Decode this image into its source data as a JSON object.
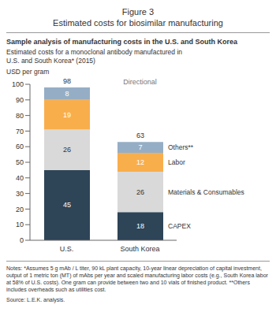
{
  "chart_data": {
    "type": "bar",
    "header": "Figure 3",
    "title": "Estimated costs for biosimilar manufacturing",
    "subtitle": "Sample analysis of manufacturing costs in the U.S. and South Korea",
    "description": "Estimated costs for a monoclonal antibody manufactured in U.S. and South Korea* (2015)",
    "y_label": "USD per gram",
    "annotation": "Directional",
    "categories": [
      "U.S.",
      "South Korea"
    ],
    "series": [
      {
        "name": "CAPEX",
        "color": "#2e4457",
        "values": [
          45,
          18
        ]
      },
      {
        "name": "Materials & Consumables",
        "color": "#d9d9d9",
        "values": [
          26,
          26
        ]
      },
      {
        "name": "Labor",
        "color": "#f9ae4c",
        "values": [
          19,
          12
        ]
      },
      {
        "name": "Others**",
        "color": "#95aec5",
        "values": [
          8,
          7
        ]
      }
    ],
    "totals": [
      98,
      63
    ],
    "stacked": true,
    "data_labels": true,
    "grid": false,
    "ylim": [
      0,
      100
    ],
    "yticks": [
      0,
      10,
      20,
      30,
      40,
      50,
      60,
      70,
      80,
      90,
      100
    ],
    "notes": "Notes: *Assumes 5 g mAb / L titer, 90 kL plant capacity, 10-year linear depreciation of capital investment, output of 1 metric ton (MT) of mAbs per year and scaled manufacturing labor costs (e.g., South Korea labor at 58% of U.S. costs). One gram can provide between two and 10 vials of finished product. **Others includes overheads such as utilities cost.",
    "source": "Source: L.E.K. analysis."
  }
}
